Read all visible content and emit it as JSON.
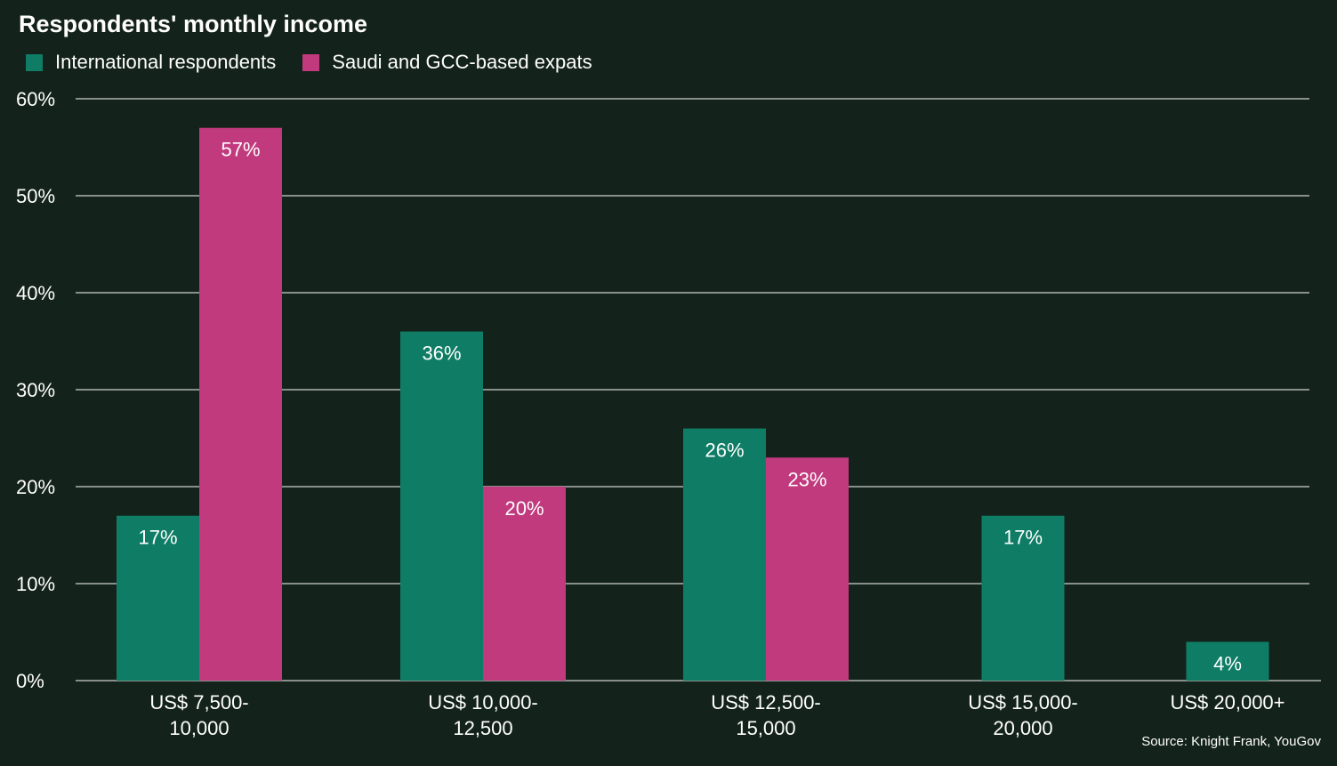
{
  "chart_data": {
    "type": "bar",
    "title": "Respondents' monthly income",
    "categories": [
      [
        "US$ 7,500-",
        "10,000"
      ],
      [
        "US$ 10,000-",
        "12,500"
      ],
      [
        "US$ 12,500-",
        "15,000"
      ],
      [
        "US$ 15,000-",
        "20,000"
      ],
      [
        "US$ 20,000+"
      ]
    ],
    "series": [
      {
        "name": "International respondents",
        "color": "#0f7d65",
        "values": [
          17,
          36,
          26,
          17,
          4
        ]
      },
      {
        "name": "Saudi and GCC-based expats",
        "color": "#c23a7e",
        "values": [
          57,
          20,
          23,
          null,
          null
        ]
      }
    ],
    "ylim": [
      0,
      60
    ],
    "yticks": [
      "0%",
      "10%",
      "20%",
      "30%",
      "40%",
      "50%",
      "60%"
    ],
    "grid": true,
    "legend": "top-left",
    "value_labels": true
  },
  "source": "Source:  Knight Frank, YouGov"
}
